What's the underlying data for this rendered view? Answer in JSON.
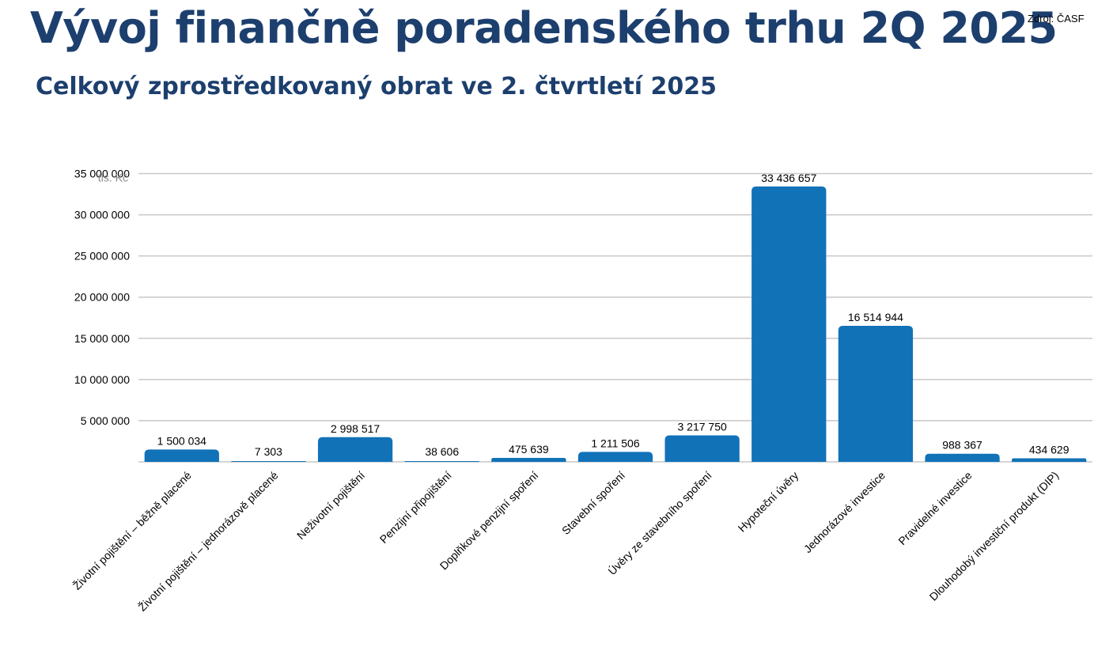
{
  "header": {
    "title": "Vývoj finančně poradenského trhu 2Q 2025",
    "subtitle": "Celkový zprostředkovaný obrat ve 2. čtvrtletí 2025",
    "source": "Zdroj: ČASF"
  },
  "chart_data": {
    "type": "bar",
    "title": "Celkový zprostředkovaný obrat ve 2. čtvrtletí 2025",
    "unit_label": "tis. Kč",
    "xlabel": "",
    "ylabel": "",
    "ylim": [
      0,
      35000000
    ],
    "yticks": [
      5000000,
      10000000,
      15000000,
      20000000,
      25000000,
      30000000,
      35000000
    ],
    "ytick_labels": [
      "5 000 000",
      "10 000 000",
      "15 000 000",
      "20 000 000",
      "25 000 000",
      "30 000 000",
      "35 000 000"
    ],
    "grid": true,
    "legend": "none",
    "bar_color": "#1172b8",
    "categories": [
      "Životní pojištění – běžně placené",
      "Životní pojištění – jednorázově placené",
      "Neživotní pojištění",
      "Penzijní připojištění",
      "Doplňkové penzijní spoření",
      "Stavební spoření",
      "Úvěry ze stavebního spoření",
      "Hypoteční úvěry",
      "Jednorázové investice",
      "Pravidelné investice",
      "Dlouhodobý investiční produkt (DIP)"
    ],
    "values": [
      1500034,
      7303,
      2998517,
      38606,
      475639,
      1211506,
      3217750,
      33436657,
      16514944,
      988367,
      434629
    ],
    "value_labels": [
      "1 500 034",
      "7 303",
      "2 998 517",
      "38 606",
      "475 639",
      "1 211 506",
      "3 217 750",
      "33 436 657",
      "16 514 944",
      "988 367",
      "434 629"
    ]
  }
}
